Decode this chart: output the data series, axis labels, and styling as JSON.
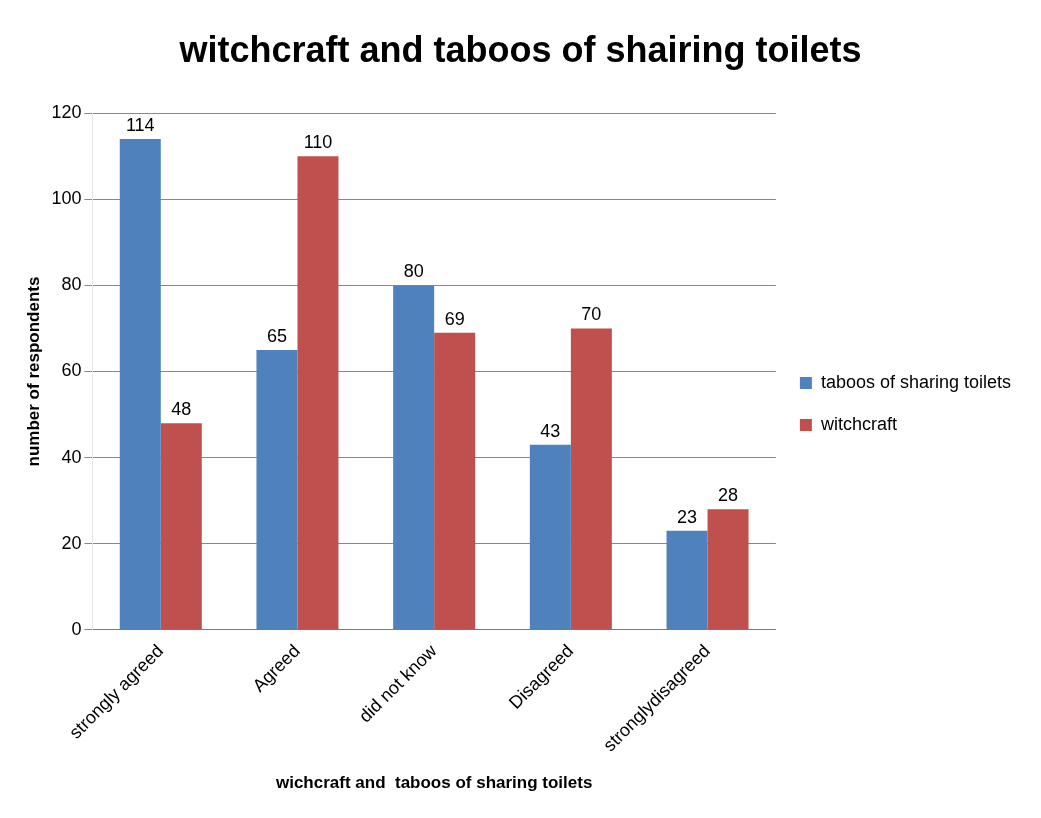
{
  "chart_data": {
    "type": "bar",
    "title": "witchcraft and taboos of shairing toilets",
    "xlabel": "wichcraft and  taboos of sharing toilets",
    "ylabel": "number of respondents",
    "categories": [
      "strongly agreed",
      "Agreed",
      "did not know",
      "Disagreed",
      "stronglydisagreed"
    ],
    "series": [
      {
        "name": "taboos of sharing toilets",
        "color": "#4f81bd",
        "values": [
          114,
          65,
          80,
          43,
          23
        ]
      },
      {
        "name": "witchcraft",
        "color": "#c0504d",
        "values": [
          48,
          110,
          69,
          70,
          28
        ]
      }
    ],
    "ylim": [
      0,
      120
    ],
    "yticks": [
      0,
      20,
      40,
      60,
      80,
      100,
      120
    ],
    "grid": "y",
    "legend": "right",
    "data_labels": true
  }
}
